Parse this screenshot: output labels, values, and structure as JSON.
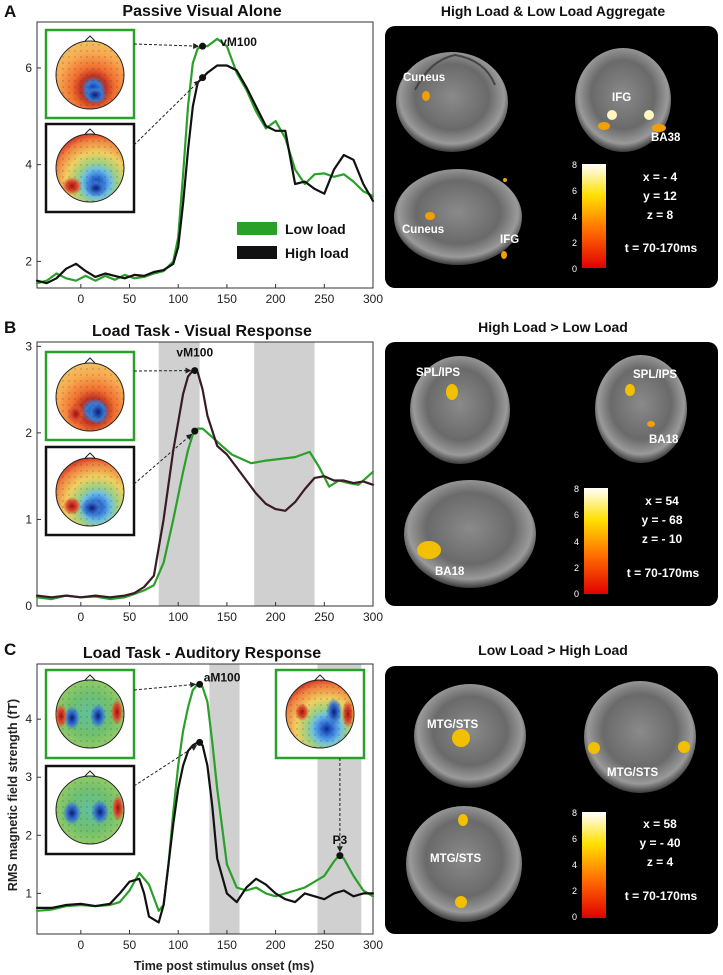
{
  "figure": {
    "ylabel": "RMS magnetic field strength (fT)",
    "xlabel": "Time post stimulus onset (ms)",
    "legend": [
      {
        "label": "Low load",
        "color": "#2aa02a"
      },
      {
        "label": "High load",
        "color": "#111111"
      }
    ]
  },
  "chart_data": [
    {
      "type": "line",
      "panel": "A",
      "title": "Passive Visual Alone",
      "xlim": [
        -45,
        300
      ],
      "ylim": [
        1.45,
        6.95
      ],
      "xticks": [
        0,
        50,
        100,
        150,
        200,
        250,
        300
      ],
      "yticks": [
        2,
        4,
        6
      ],
      "shaded": [],
      "peak_labels": [
        {
          "text": "vM100",
          "x": 162,
          "y": 6.45
        }
      ],
      "peak_markers": [
        {
          "x": 125,
          "y": 6.45
        },
        {
          "x": 125,
          "y": 5.8
        }
      ],
      "series": [
        {
          "name": "Low load",
          "color": "#2aa02a",
          "x": [
            -45,
            -35,
            -25,
            -15,
            -5,
            5,
            15,
            25,
            35,
            45,
            55,
            65,
            75,
            85,
            95,
            100,
            105,
            110,
            115,
            120,
            125,
            130,
            140,
            150,
            160,
            170,
            180,
            190,
            200,
            210,
            220,
            230,
            240,
            250,
            260,
            270,
            280,
            290,
            300
          ],
          "y": [
            1.55,
            1.6,
            1.75,
            1.65,
            1.6,
            1.7,
            1.6,
            1.7,
            1.62,
            1.72,
            1.65,
            1.68,
            1.75,
            1.8,
            2.0,
            2.5,
            3.8,
            5.2,
            6.1,
            6.4,
            6.45,
            6.45,
            6.6,
            6.45,
            5.9,
            5.55,
            5.1,
            4.75,
            4.9,
            4.55,
            3.9,
            3.6,
            3.8,
            3.82,
            3.75,
            3.8,
            3.65,
            3.45,
            3.35
          ]
        },
        {
          "name": "High load",
          "color": "#111111",
          "x": [
            -45,
            -35,
            -25,
            -15,
            -5,
            5,
            15,
            25,
            35,
            45,
            55,
            65,
            75,
            85,
            95,
            100,
            105,
            110,
            115,
            120,
            125,
            130,
            140,
            150,
            160,
            170,
            180,
            190,
            200,
            210,
            220,
            230,
            240,
            250,
            260,
            270,
            280,
            290,
            300
          ],
          "y": [
            1.6,
            1.55,
            1.65,
            1.85,
            1.95,
            1.8,
            1.68,
            1.75,
            1.7,
            1.65,
            1.72,
            1.7,
            1.78,
            1.82,
            1.95,
            2.3,
            3.2,
            4.3,
            5.2,
            5.7,
            5.8,
            5.9,
            6.05,
            6.05,
            5.95,
            5.6,
            5.2,
            4.8,
            4.7,
            4.7,
            3.6,
            3.65,
            3.5,
            3.4,
            3.9,
            4.2,
            4.1,
            3.6,
            3.25
          ]
        }
      ]
    },
    {
      "type": "line",
      "panel": "B",
      "title": "Load Task - Visual Response",
      "xlim": [
        -45,
        300
      ],
      "ylim": [
        0,
        3.05
      ],
      "xticks": [
        0,
        50,
        100,
        150,
        200,
        250,
        300
      ],
      "yticks": [
        0,
        1,
        2,
        3
      ],
      "shaded": [
        [
          80,
          122
        ],
        [
          178,
          240
        ]
      ],
      "peak_labels": [
        {
          "text": "vM100",
          "x": 117,
          "y": 2.88
        }
      ],
      "peak_markers": [
        {
          "x": 117,
          "y": 2.72
        },
        {
          "x": 117,
          "y": 2.02
        }
      ],
      "series": [
        {
          "name": "Low load",
          "color": "#2aa02a",
          "x": [
            -45,
            -30,
            -15,
            0,
            15,
            30,
            45,
            55,
            65,
            75,
            85,
            95,
            105,
            110,
            115,
            120,
            125,
            135,
            145,
            155,
            165,
            175,
            190,
            205,
            220,
            235,
            245,
            255,
            265,
            275,
            285,
            300
          ],
          "y": [
            0.1,
            0.08,
            0.12,
            0.1,
            0.11,
            0.08,
            0.1,
            0.14,
            0.18,
            0.24,
            0.5,
            1.0,
            1.55,
            1.8,
            1.98,
            2.05,
            2.05,
            1.95,
            1.85,
            1.75,
            1.7,
            1.65,
            1.68,
            1.7,
            1.72,
            1.78,
            1.6,
            1.38,
            1.45,
            1.42,
            1.4,
            1.55
          ]
        },
        {
          "name": "High load",
          "color": "#3a1a26",
          "x": [
            -45,
            -30,
            -15,
            0,
            15,
            30,
            45,
            55,
            65,
            75,
            85,
            95,
            105,
            110,
            115,
            120,
            125,
            130,
            140,
            150,
            160,
            170,
            180,
            190,
            200,
            210,
            220,
            230,
            240,
            250,
            260,
            270,
            280,
            290,
            300
          ],
          "y": [
            0.12,
            0.1,
            0.12,
            0.1,
            0.12,
            0.1,
            0.12,
            0.15,
            0.22,
            0.35,
            1.0,
            1.8,
            2.45,
            2.65,
            2.72,
            2.7,
            2.5,
            2.2,
            1.85,
            1.75,
            1.6,
            1.45,
            1.3,
            1.18,
            1.12,
            1.1,
            1.2,
            1.35,
            1.48,
            1.5,
            1.45,
            1.45,
            1.42,
            1.44,
            1.4
          ]
        }
      ]
    },
    {
      "type": "line",
      "panel": "C",
      "title": "Load Task - Auditory Response",
      "xlim": [
        -45,
        300
      ],
      "ylim": [
        0.3,
        4.95
      ],
      "xticks": [
        0,
        50,
        100,
        150,
        200,
        250,
        300
      ],
      "yticks": [
        1,
        2,
        3,
        4
      ],
      "shaded": [
        [
          132,
          163
        ],
        [
          243,
          288
        ]
      ],
      "peak_labels": [
        {
          "text": "aM100",
          "x": 145,
          "y": 4.65
        },
        {
          "text": "P3",
          "x": 266,
          "y": 1.85
        }
      ],
      "peak_markers": [
        {
          "x": 122,
          "y": 4.6
        },
        {
          "x": 122,
          "y": 3.6
        },
        {
          "x": 266,
          "y": 1.65
        }
      ],
      "series": [
        {
          "name": "Low load",
          "color": "#2aa02a",
          "x": [
            -45,
            -30,
            -15,
            0,
            15,
            30,
            40,
            50,
            60,
            70,
            80,
            85,
            90,
            95,
            100,
            105,
            110,
            115,
            120,
            125,
            130,
            135,
            140,
            150,
            160,
            170,
            180,
            190,
            200,
            210,
            220,
            230,
            240,
            250,
            260,
            265,
            270,
            280,
            290,
            300
          ],
          "y": [
            0.7,
            0.72,
            0.78,
            0.8,
            0.78,
            0.8,
            0.85,
            1.05,
            1.35,
            1.15,
            0.7,
            0.8,
            1.5,
            2.4,
            3.2,
            3.8,
            4.2,
            4.5,
            4.6,
            4.55,
            4.3,
            3.6,
            2.8,
            1.5,
            1.1,
            1.05,
            1.1,
            1.0,
            0.95,
            1.0,
            1.05,
            1.1,
            1.2,
            1.3,
            1.55,
            1.65,
            1.6,
            1.3,
            1.05,
            0.95
          ]
        },
        {
          "name": "High load",
          "color": "#111111",
          "x": [
            -45,
            -30,
            -15,
            0,
            15,
            30,
            40,
            50,
            60,
            65,
            70,
            80,
            85,
            90,
            95,
            100,
            105,
            110,
            115,
            120,
            125,
            130,
            135,
            140,
            150,
            160,
            170,
            180,
            190,
            200,
            210,
            220,
            230,
            240,
            250,
            260,
            270,
            280,
            290,
            300
          ],
          "y": [
            0.75,
            0.75,
            0.8,
            0.82,
            0.78,
            0.82,
            1.0,
            1.2,
            1.25,
            1.0,
            0.6,
            0.5,
            0.8,
            1.5,
            2.2,
            2.8,
            3.2,
            3.45,
            3.55,
            3.6,
            3.55,
            3.2,
            2.5,
            1.6,
            1.0,
            0.85,
            1.1,
            1.25,
            1.15,
            1.0,
            0.9,
            0.85,
            1.0,
            0.95,
            0.9,
            1.0,
            1.05,
            0.95,
            1.0,
            1.0
          ]
        }
      ]
    }
  ],
  "brain_panels": [
    {
      "title": "High Load & Low Load Aggregate",
      "region_labels": [
        "Cuneus",
        "IFG",
        "BA38",
        "Cuneus",
        "IFG"
      ],
      "colorbar_ticks": [
        "8",
        "6",
        "4",
        "2",
        "0"
      ],
      "coords": [
        "x = - 4",
        "y = 12",
        "z = 8"
      ],
      "time_window": "t = 70-170ms"
    },
    {
      "title": "High Load > Low Load",
      "region_labels": [
        "SPL/IPS",
        "SPL/IPS",
        "BA18",
        "BA18"
      ],
      "colorbar_ticks": [
        "8",
        "6",
        "4",
        "2",
        "0"
      ],
      "coords": [
        "x = 54",
        "y = - 68",
        "z = - 10"
      ],
      "time_window": "t = 70-170ms"
    },
    {
      "title": "Low Load > High Load",
      "region_labels": [
        "MTG/STS",
        "MTG/STS",
        "MTG/STS"
      ],
      "colorbar_ticks": [
        "8",
        "6",
        "4",
        "2",
        "0"
      ],
      "coords": [
        "x = 58",
        "y = - 40",
        "z = 4"
      ],
      "time_window": "t = 70-170ms"
    }
  ],
  "topomaps": {
    "A": [
      "low load topography",
      "high load topography"
    ],
    "B": [
      "low load topography",
      "high load topography"
    ],
    "C": [
      "low load topography",
      "high load topography",
      "P3 topography"
    ]
  },
  "colors": {
    "low_load": "#2aa02a",
    "high_load": "#111111",
    "shade": "#d0d0d0",
    "brain_bg": "#000000"
  }
}
